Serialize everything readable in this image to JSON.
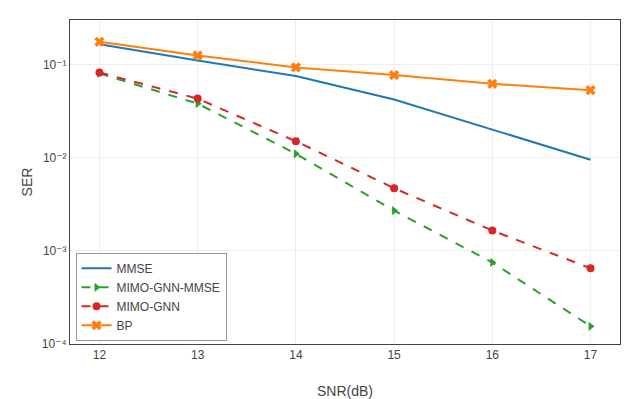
{
  "chart_data": {
    "type": "line",
    "x": [
      12,
      13,
      14,
      15,
      16,
      17
    ],
    "series": [
      {
        "name": "MMSE",
        "color": "#1f77b4",
        "line_style": "solid",
        "values": [
          0.165,
          0.11,
          0.075,
          0.042,
          0.02,
          0.0095
        ]
      },
      {
        "name": "MIMO-GNN-MMSE",
        "color": "#2ca02c",
        "line_style": "dashed",
        "marker": "triangle-right",
        "values": [
          0.08,
          0.038,
          0.011,
          0.0027,
          0.00075,
          0.000155
        ]
      },
      {
        "name": "MIMO-GNN",
        "color": "#d62728",
        "line_style": "dashed",
        "marker": "circle",
        "values": [
          0.082,
          0.043,
          0.015,
          0.0047,
          0.00165,
          0.00065
        ]
      },
      {
        "name": "BP",
        "color": "#ff7f0e",
        "line_style": "solid",
        "marker": "x",
        "values": [
          0.175,
          0.125,
          0.093,
          0.077,
          0.062,
          0.053
        ]
      }
    ],
    "x_label": "SNR(dB)",
    "y_label": "SER",
    "xlim": [
      11.7,
      17.3
    ],
    "xticks": [
      12,
      13,
      14,
      15,
      16,
      17
    ],
    "ylim": [
      0.0001,
      0.3
    ],
    "yticks": [
      {
        "value": 0.0001,
        "label": "10⁻⁴"
      },
      {
        "value": 0.001,
        "label": "10⁻³"
      },
      {
        "value": 0.01,
        "label": "10⁻²"
      },
      {
        "value": 0.1,
        "label": "10⁻¹"
      }
    ],
    "log": "y",
    "grid": true,
    "legend": "lower left"
  }
}
